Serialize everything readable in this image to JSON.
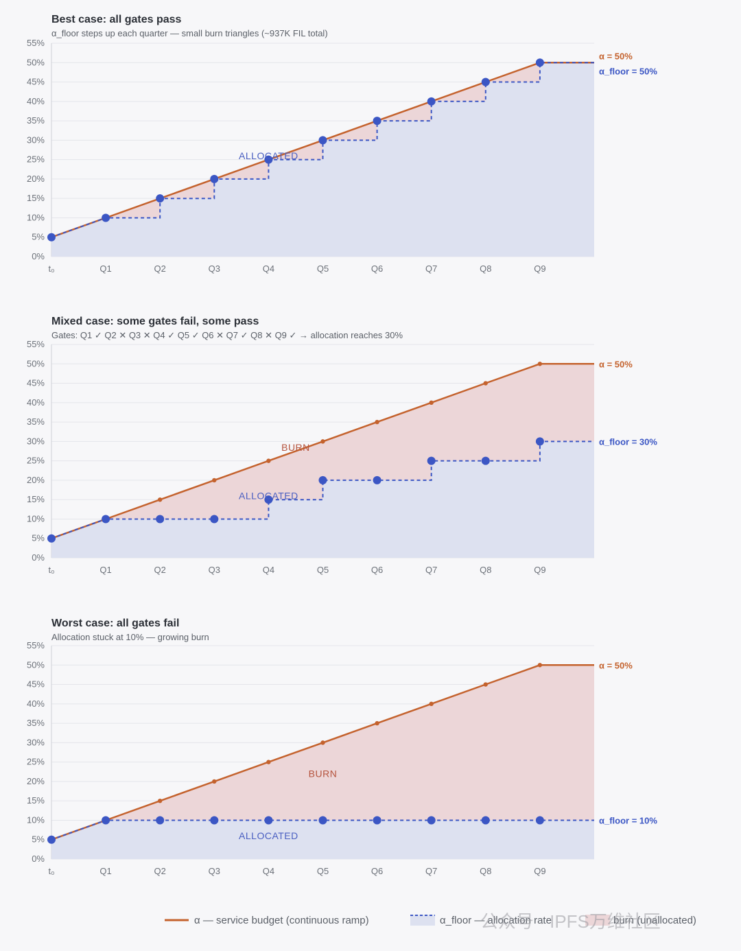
{
  "colors": {
    "alpha": "#c4622d",
    "floor": "#3b56c4",
    "alloc_fill": "#dde1f0",
    "burn_fill": "#ecd6d8",
    "grid": "#e4e5ea"
  },
  "legend": {
    "alpha_label": "α — service budget (continuous ramp)",
    "floor_label": "α_floor — allocation rate",
    "burn_label": "burn (unallocated)"
  },
  "watermark": "公众号 · IPFS万维社区",
  "chart_data": [
    {
      "type": "line",
      "title": "Best case: all gates pass",
      "subtitle": "α_floor steps up each quarter — small burn triangles (~937K FIL total)",
      "categories": [
        "t₀",
        "Q1",
        "Q2",
        "Q3",
        "Q4",
        "Q5",
        "Q6",
        "Q7",
        "Q8",
        "Q9"
      ],
      "y_ticks": [
        "0%",
        "5%",
        "10%",
        "15%",
        "20%",
        "25%",
        "30%",
        "35%",
        "40%",
        "45%",
        "50%",
        "55%"
      ],
      "ylim": [
        0,
        55
      ],
      "grid": true,
      "series": [
        {
          "name": "α",
          "values": [
            5,
            10,
            15,
            20,
            25,
            30,
            35,
            40,
            45,
            50
          ],
          "end_value": 50
        },
        {
          "name": "α_floor",
          "values": [
            5,
            10,
            15,
            20,
            25,
            30,
            35,
            40,
            45,
            50
          ],
          "end_value": 50
        }
      ],
      "annotations": {
        "alpha_end": "α = 50%",
        "floor_end": "α_floor = 50%",
        "allocated": "ALLOCATED",
        "allocated_at": [
          4,
          26
        ],
        "burn": "",
        "burn_at": null
      }
    },
    {
      "type": "line",
      "title": "Mixed case: some gates fail, some pass",
      "subtitle": "Gates: Q1 ✓  Q2 ✕  Q3 ✕  Q4 ✓  Q5 ✓  Q6 ✕  Q7 ✓  Q8 ✕  Q9 ✓ → allocation reaches 30%",
      "categories": [
        "t₀",
        "Q1",
        "Q2",
        "Q3",
        "Q4",
        "Q5",
        "Q6",
        "Q7",
        "Q8",
        "Q9"
      ],
      "y_ticks": [
        "0%",
        "5%",
        "10%",
        "15%",
        "20%",
        "25%",
        "30%",
        "35%",
        "40%",
        "45%",
        "50%",
        "55%"
      ],
      "ylim": [
        0,
        55
      ],
      "grid": true,
      "series": [
        {
          "name": "α",
          "values": [
            5,
            10,
            15,
            20,
            25,
            30,
            35,
            40,
            45,
            50
          ],
          "end_value": 50
        },
        {
          "name": "α_floor",
          "values": [
            5,
            10,
            10,
            10,
            15,
            20,
            20,
            25,
            25,
            30
          ],
          "end_value": 30
        }
      ],
      "annotations": {
        "alpha_end": "α = 50%",
        "floor_end": "α_floor = 30%",
        "allocated": "ALLOCATED",
        "allocated_at": [
          4,
          16
        ],
        "burn": "BURN",
        "burn_at": [
          4.5,
          28.5
        ]
      }
    },
    {
      "type": "line",
      "title": "Worst case: all gates fail",
      "subtitle": "Allocation stuck at 10% — growing burn",
      "categories": [
        "t₀",
        "Q1",
        "Q2",
        "Q3",
        "Q4",
        "Q5",
        "Q6",
        "Q7",
        "Q8",
        "Q9"
      ],
      "y_ticks": [
        "0%",
        "5%",
        "10%",
        "15%",
        "20%",
        "25%",
        "30%",
        "35%",
        "40%",
        "45%",
        "50%",
        "55%"
      ],
      "ylim": [
        0,
        55
      ],
      "grid": true,
      "series": [
        {
          "name": "α",
          "values": [
            5,
            10,
            15,
            20,
            25,
            30,
            35,
            40,
            45,
            50
          ],
          "end_value": 50
        },
        {
          "name": "α_floor",
          "values": [
            5,
            10,
            10,
            10,
            10,
            10,
            10,
            10,
            10,
            10
          ],
          "end_value": 10
        }
      ],
      "annotations": {
        "alpha_end": "α = 50%",
        "floor_end": "α_floor = 10%",
        "allocated": "ALLOCATED",
        "allocated_at": [
          4,
          6
        ],
        "burn": "BURN",
        "burn_at": [
          5,
          22
        ]
      }
    }
  ]
}
